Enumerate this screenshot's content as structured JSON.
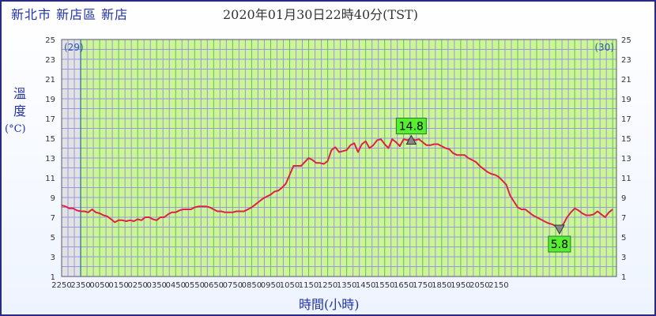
{
  "header": {
    "location": "新北市 新店區 新店",
    "datetime": "2020年01月30日22時40分(TST)"
  },
  "chart_data": {
    "type": "line",
    "ylabel_chars": [
      "溫",
      "度"
    ],
    "yunit": "(°C)",
    "xlabel": "時間(小時)",
    "ylim": [
      1,
      25
    ],
    "ytick_labels": [
      "1",
      "3",
      "5",
      "7",
      "9",
      "11",
      "13",
      "15",
      "17",
      "19",
      "21",
      "23",
      "25"
    ],
    "xtick_labels": [
      "2250",
      "2350",
      "0050",
      "0150",
      "0250",
      "0350",
      "0450",
      "0550",
      "0650",
      "0750",
      "0850",
      "0950",
      "1050",
      "1150",
      "1250",
      "1350",
      "1450",
      "1550",
      "1650",
      "1750",
      "1850",
      "1950",
      "2050",
      "2150"
    ],
    "day_labels": {
      "left": "(29)",
      "right": "(30)"
    },
    "series": [
      {
        "color": "#e0204a",
        "points": [
          [
            0,
            8.2
          ],
          [
            0.2,
            8.1
          ],
          [
            0.4,
            7.9
          ],
          [
            0.6,
            7.9
          ],
          [
            0.8,
            7.7
          ],
          [
            1.0,
            7.6
          ],
          [
            1.2,
            7.6
          ],
          [
            1.4,
            7.5
          ],
          [
            1.6,
            7.8
          ],
          [
            1.8,
            7.5
          ],
          [
            2.0,
            7.4
          ],
          [
            2.2,
            7.2
          ],
          [
            2.4,
            7.1
          ],
          [
            2.6,
            6.8
          ],
          [
            2.8,
            6.5
          ],
          [
            3.0,
            6.7
          ],
          [
            3.2,
            6.7
          ],
          [
            3.4,
            6.6
          ],
          [
            3.6,
            6.7
          ],
          [
            3.8,
            6.6
          ],
          [
            4.0,
            6.8
          ],
          [
            4.2,
            6.7
          ],
          [
            4.4,
            7.0
          ],
          [
            4.6,
            7.0
          ],
          [
            4.8,
            6.8
          ],
          [
            5.0,
            6.7
          ],
          [
            5.2,
            7.0
          ],
          [
            5.4,
            7.0
          ],
          [
            5.6,
            7.3
          ],
          [
            5.8,
            7.5
          ],
          [
            6.0,
            7.5
          ],
          [
            6.2,
            7.7
          ],
          [
            6.4,
            7.8
          ],
          [
            6.6,
            7.8
          ],
          [
            6.8,
            7.8
          ],
          [
            7.0,
            8.0
          ],
          [
            7.2,
            8.1
          ],
          [
            7.4,
            8.1
          ],
          [
            7.6,
            8.1
          ],
          [
            7.8,
            8.0
          ],
          [
            8.0,
            7.8
          ],
          [
            8.2,
            7.6
          ],
          [
            8.4,
            7.6
          ],
          [
            8.6,
            7.5
          ],
          [
            8.8,
            7.5
          ],
          [
            9.0,
            7.5
          ],
          [
            9.2,
            7.6
          ],
          [
            9.4,
            7.6
          ],
          [
            9.6,
            7.6
          ],
          [
            9.8,
            7.8
          ],
          [
            10.0,
            8.0
          ],
          [
            10.2,
            8.3
          ],
          [
            10.4,
            8.6
          ],
          [
            10.6,
            8.9
          ],
          [
            10.8,
            9.1
          ],
          [
            11.0,
            9.3
          ],
          [
            11.2,
            9.6
          ],
          [
            11.4,
            9.7
          ],
          [
            11.6,
            10.0
          ],
          [
            11.8,
            10.4
          ],
          [
            12.0,
            11.3
          ],
          [
            12.2,
            12.2
          ],
          [
            12.4,
            12.2
          ],
          [
            12.6,
            12.2
          ],
          [
            12.8,
            12.6
          ],
          [
            13.0,
            13.0
          ],
          [
            13.2,
            12.8
          ],
          [
            13.4,
            12.5
          ],
          [
            13.6,
            12.5
          ],
          [
            13.8,
            12.4
          ],
          [
            14.0,
            12.7
          ],
          [
            14.2,
            13.8
          ],
          [
            14.4,
            14.1
          ],
          [
            14.6,
            13.6
          ],
          [
            14.8,
            13.7
          ],
          [
            15.0,
            13.8
          ],
          [
            15.2,
            14.3
          ],
          [
            15.4,
            14.5
          ],
          [
            15.6,
            13.6
          ],
          [
            15.8,
            14.4
          ],
          [
            16.0,
            14.7
          ],
          [
            16.2,
            14.0
          ],
          [
            16.4,
            14.3
          ],
          [
            16.6,
            14.8
          ],
          [
            16.8,
            14.9
          ],
          [
            17.0,
            14.4
          ],
          [
            17.2,
            14.0
          ],
          [
            17.4,
            14.9
          ],
          [
            17.6,
            14.6
          ],
          [
            17.8,
            14.2
          ],
          [
            18.0,
            14.9
          ],
          [
            18.2,
            14.8
          ],
          [
            18.4,
            15.0
          ],
          [
            18.6,
            14.8
          ],
          [
            18.8,
            14.9
          ],
          [
            19.0,
            14.6
          ],
          [
            19.2,
            14.3
          ],
          [
            19.4,
            14.3
          ],
          [
            19.6,
            14.4
          ],
          [
            19.8,
            14.4
          ],
          [
            20.0,
            14.2
          ],
          [
            20.2,
            14.0
          ],
          [
            20.4,
            13.9
          ],
          [
            20.6,
            13.5
          ],
          [
            20.8,
            13.3
          ],
          [
            21.0,
            13.3
          ],
          [
            21.2,
            13.3
          ],
          [
            21.4,
            13.0
          ],
          [
            21.6,
            12.8
          ],
          [
            21.8,
            12.6
          ],
          [
            22.0,
            12.2
          ],
          [
            22.2,
            11.9
          ],
          [
            22.4,
            11.6
          ],
          [
            22.6,
            11.4
          ],
          [
            22.8,
            11.3
          ],
          [
            23.0,
            11.1
          ],
          [
            23.2,
            10.7
          ],
          [
            23.4,
            10.3
          ],
          [
            23.6,
            9.2
          ],
          [
            23.8,
            8.6
          ],
          [
            24.0,
            8.0
          ],
          [
            24.2,
            7.8
          ],
          [
            24.4,
            7.8
          ],
          [
            24.6,
            7.5
          ],
          [
            24.8,
            7.2
          ],
          [
            25.0,
            7.0
          ],
          [
            25.2,
            6.8
          ],
          [
            25.4,
            6.6
          ],
          [
            25.6,
            6.4
          ],
          [
            25.8,
            6.3
          ],
          [
            26.0,
            6.1
          ],
          [
            26.2,
            5.9
          ],
          [
            26.4,
            6.3
          ],
          [
            26.6,
            7.0
          ],
          [
            26.8,
            7.5
          ],
          [
            27.0,
            7.9
          ],
          [
            27.2,
            7.7
          ],
          [
            27.4,
            7.4
          ],
          [
            27.6,
            7.2
          ],
          [
            27.8,
            7.2
          ],
          [
            28.0,
            7.3
          ],
          [
            28.2,
            7.6
          ],
          [
            28.4,
            7.3
          ],
          [
            28.6,
            7.0
          ],
          [
            28.8,
            7.5
          ],
          [
            29.0,
            7.8
          ]
        ]
      }
    ],
    "max_marker": {
      "x": 18.4,
      "y": 14.8,
      "label": "14.8"
    },
    "min_marker": {
      "x": 26.2,
      "y": 5.8,
      "label": "5.8"
    },
    "grid": true
  },
  "colors": {
    "plot_bg_day1": "#e2e2e2",
    "plot_bg_day2": "#ccf595",
    "grid_minor": "#9999dd",
    "grid_major": "#66bb66",
    "line": "#e0204a",
    "label_box": "#55ee33",
    "day_divider": "#2a6aaa"
  }
}
